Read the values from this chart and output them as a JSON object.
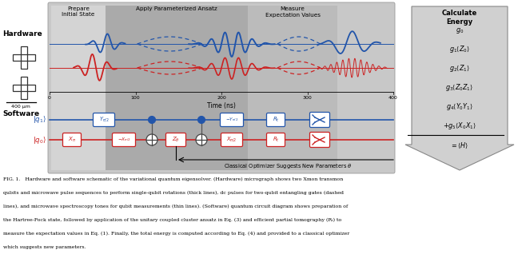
{
  "fig_width": 6.48,
  "fig_height": 3.28,
  "blue": "#2255aa",
  "red": "#cc2222",
  "dark_gray": "#555555",
  "bg_main": "#c8c8c8",
  "bg_prepare": "#d4d4d4",
  "bg_ansatz": "#aaaaaa",
  "bg_measure": "#bbbbbb",
  "arrow_fill": "#d0d0d0",
  "arrow_edge": "#888888",
  "time_ticks": [
    0,
    100,
    200,
    300,
    400
  ],
  "scale_bar": "400 μm",
  "caption_line1": "FIG. 1.   Hardware and software schematic of the variational quantum eigensolver. (Hardware) micrograph shows two Xmon transmon",
  "caption_line2": "qubits and microwave pulse sequences to perform single-qubit rotations (thick lines), dc pulses for two-qubit entangling gates (dashed",
  "caption_line3": "lines), and microwave spectroscopy tones for qubit measurements (thin lines). (Software) quantum circuit diagram shows preparation of",
  "caption_line4": "the Hartree-Fock state, followed by application of the unitary coupled cluster ansatz in Eq. (3) and efficient partial tomography (Rᵢ) to",
  "caption_line5": "measure the expectation values in Eq. (1). Finally, the total energy is computed according to Eq. (4) and provided to a classical optimizer",
  "caption_line6": "which suggests new parameters."
}
